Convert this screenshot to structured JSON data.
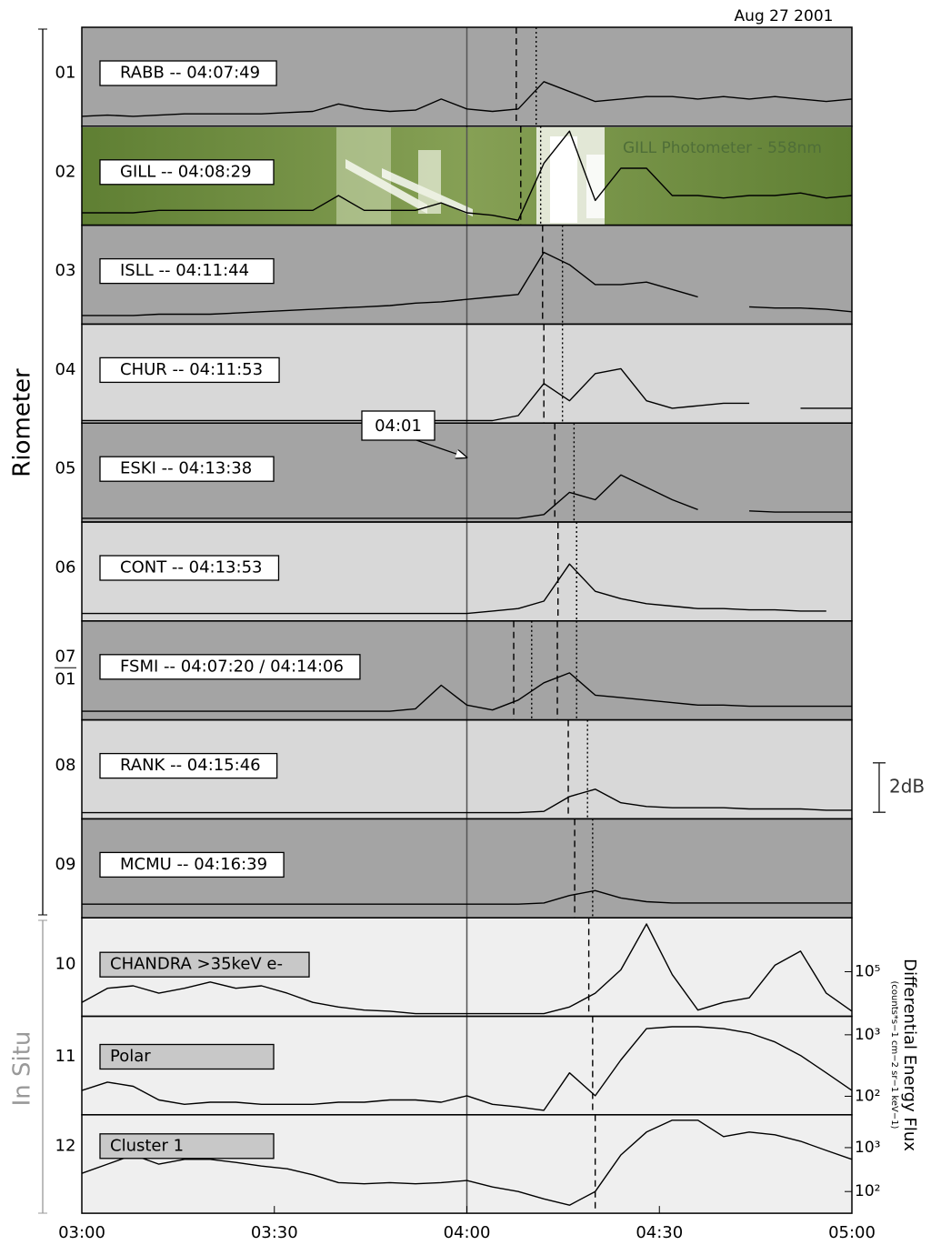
{
  "date": "Aug 27 2001",
  "x_axis": {
    "xlim": [
      0,
      120
    ],
    "x": [
      0,
      4,
      8,
      12,
      16,
      20,
      24,
      28,
      32,
      36,
      40,
      44,
      48,
      52,
      56,
      60,
      64,
      68,
      72,
      76,
      80,
      84,
      88,
      92,
      96,
      100,
      104,
      108,
      112,
      116,
      120
    ],
    "xticks": [
      {
        "value": 0,
        "label": "03:00"
      },
      {
        "value": 30,
        "label": "03:30"
      },
      {
        "value": 60,
        "label": "04:00"
      },
      {
        "value": 90,
        "label": "04:30"
      },
      {
        "value": 120,
        "label": "05:00"
      }
    ],
    "reference_line": 60
  },
  "groups": [
    {
      "label": "Riometer"
    },
    {
      "label": "In Situ"
    }
  ],
  "callout": "04:01",
  "scale_bar": {
    "value": 2,
    "label": "2dB"
  },
  "y_axis_title": "Differential Energy Flux",
  "y_axis_units": "(counts*s−1 cm−2 sr−1 keV−1)",
  "photometer_label": "GILL Photometer - 558nm",
  "panels": [
    {
      "number": "01",
      "label": "RABB -- 04:07:49",
      "color": "#a4a4a4",
      "ylim": [
        0,
        4
      ],
      "values": [
        0.4,
        0.45,
        0.4,
        0.45,
        0.5,
        0.5,
        0.5,
        0.5,
        0.55,
        0.6,
        0.9,
        0.7,
        0.6,
        0.65,
        1.1,
        0.7,
        0.6,
        0.7,
        1.8,
        1.4,
        1.0,
        1.1,
        1.2,
        1.2,
        1.1,
        1.2,
        1.1,
        1.2,
        1.1,
        1.0,
        1.1
      ],
      "onsets": [
        {
          "style": "dashed",
          "x": 67.7
        },
        {
          "style": "dotted",
          "x": 70.8
        }
      ]
    },
    {
      "number": "02",
      "label": "GILL -- 04:08:29",
      "color": "#6e8b3d",
      "ylim": [
        0,
        4
      ],
      "values": [
        0.5,
        0.5,
        0.5,
        0.6,
        0.6,
        0.6,
        0.6,
        0.6,
        0.6,
        0.6,
        1.2,
        0.6,
        0.6,
        0.6,
        0.9,
        0.5,
        0.4,
        0.2,
        2.5,
        3.8,
        1.0,
        2.3,
        2.3,
        1.2,
        1.2,
        1.1,
        1.2,
        1.2,
        1.3,
        1.1,
        1.2
      ],
      "onsets": [
        {
          "style": "dashed",
          "x": 68.4
        },
        {
          "style": "dotted",
          "x": 71.5
        }
      ]
    },
    {
      "number": "03",
      "label": "ISLL -- 04:11:44",
      "color": "#a4a4a4",
      "ylim": [
        0,
        4
      ],
      "values": [
        0.35,
        0.35,
        0.35,
        0.4,
        0.4,
        0.4,
        0.45,
        0.5,
        0.55,
        0.6,
        0.65,
        0.7,
        0.75,
        0.85,
        0.9,
        1.0,
        1.1,
        1.2,
        2.9,
        2.4,
        1.6,
        1.6,
        1.7,
        1.4,
        1.1,
        null,
        0.7,
        0.65,
        0.65,
        0.6,
        0.5
      ],
      "onsets": [
        {
          "style": "dashed",
          "x": 71.8
        },
        {
          "style": "dotted",
          "x": 74.9
        }
      ]
    },
    {
      "number": "04",
      "label": "CHUR -- 04:11:53",
      "color": "#d8d8d8",
      "ylim": [
        0,
        4
      ],
      "values": [
        0.1,
        0.1,
        0.1,
        0.1,
        0.1,
        0.1,
        0.1,
        0.1,
        0.1,
        0.1,
        0.1,
        0.1,
        0.1,
        0.1,
        0.1,
        0.1,
        0.1,
        0.3,
        1.6,
        0.9,
        2.0,
        2.2,
        0.9,
        0.6,
        0.7,
        0.8,
        0.8,
        null,
        0.6,
        0.6,
        0.6
      ],
      "onsets": [
        {
          "style": "dashed",
          "x": 72.0
        },
        {
          "style": "dotted",
          "x": 74.9
        }
      ]
    },
    {
      "number": "05",
      "label": "ESKI -- 04:13:38",
      "color": "#a4a4a4",
      "ylim": [
        0,
        4
      ],
      "values": [
        0.15,
        0.15,
        0.15,
        0.15,
        0.15,
        0.15,
        0.15,
        0.15,
        0.15,
        0.15,
        0.15,
        0.15,
        0.15,
        0.15,
        0.15,
        0.15,
        0.15,
        0.15,
        0.3,
        1.2,
        0.9,
        1.9,
        1.4,
        0.9,
        0.5,
        null,
        0.45,
        0.4,
        0.4,
        0.4,
        0.4
      ],
      "onsets": [
        {
          "style": "dashed",
          "x": 73.7
        },
        {
          "style": "dotted",
          "x": 76.7
        }
      ]
    },
    {
      "number": "06",
      "label": "CONT -- 04:13:53",
      "color": "#d8d8d8",
      "ylim": [
        0,
        4
      ],
      "values": [
        0.3,
        0.3,
        0.3,
        0.3,
        0.3,
        0.3,
        0.3,
        0.3,
        0.3,
        0.3,
        0.3,
        0.3,
        0.3,
        0.3,
        0.3,
        0.3,
        0.4,
        0.5,
        0.8,
        2.3,
        1.2,
        0.9,
        0.7,
        0.6,
        0.5,
        0.5,
        0.45,
        0.45,
        0.4,
        0.4,
        null
      ],
      "onsets": [
        {
          "style": "dashed",
          "x": 74.2
        },
        {
          "style": "dotted",
          "x": 77.1
        }
      ]
    },
    {
      "number": "07",
      "number2": "01",
      "label": "FSMI -- 04:07:20 / 04:14:06",
      "color": "#a4a4a4",
      "ylim": [
        0,
        4
      ],
      "values": [
        0.35,
        0.35,
        0.35,
        0.35,
        0.35,
        0.35,
        0.35,
        0.35,
        0.35,
        0.35,
        0.35,
        0.35,
        0.35,
        0.45,
        1.4,
        0.6,
        0.4,
        0.8,
        1.5,
        1.9,
        1.0,
        0.9,
        0.8,
        0.7,
        0.6,
        0.6,
        0.55,
        0.55,
        0.55,
        0.55,
        0.55
      ],
      "onsets": [
        {
          "style": "dashed",
          "x": 67.3
        },
        {
          "style": "dotted",
          "x": 70.1
        },
        {
          "style": "dashed",
          "x": 74.1
        },
        {
          "style": "dotted",
          "x": 77.1
        }
      ]
    },
    {
      "number": "08",
      "label": "RANK -- 04:15:46",
      "color": "#d8d8d8",
      "ylim": [
        0,
        4
      ],
      "values": [
        0.25,
        0.25,
        0.25,
        0.25,
        0.25,
        0.25,
        0.25,
        0.25,
        0.25,
        0.25,
        0.25,
        0.25,
        0.25,
        0.25,
        0.25,
        0.25,
        0.25,
        0.25,
        0.3,
        0.9,
        1.2,
        0.65,
        0.5,
        0.45,
        0.45,
        0.45,
        0.4,
        0.4,
        0.4,
        0.35,
        0.35
      ],
      "onsets": [
        {
          "style": "dashed",
          "x": 75.8
        },
        {
          "style": "dotted",
          "x": 78.8
        }
      ]
    },
    {
      "number": "09",
      "label": "MCMU -- 04:16:39",
      "color": "#a4a4a4",
      "ylim": [
        0,
        4
      ],
      "values": [
        0.55,
        0.55,
        0.55,
        0.55,
        0.55,
        0.55,
        0.55,
        0.55,
        0.55,
        0.55,
        0.55,
        0.55,
        0.55,
        0.55,
        0.55,
        0.55,
        0.55,
        0.55,
        0.6,
        0.9,
        1.1,
        0.8,
        0.65,
        0.6,
        0.6,
        0.6,
        0.6,
        0.6,
        0.6,
        0.6,
        0.6
      ],
      "onsets": [
        {
          "style": "dashed",
          "x": 76.8
        },
        {
          "style": "dotted",
          "x": 79.6
        }
      ]
    },
    {
      "number": "10",
      "label": "CHANDRA >35keV e-",
      "color": "#efefef",
      "log": true,
      "ylim": [
        20000,
        700000
      ],
      "yticks": [
        {
          "value": 100000,
          "label": "10⁵"
        }
      ],
      "values": [
        33000,
        55000,
        60000,
        46000,
        55000,
        69000,
        55000,
        60000,
        46000,
        33000,
        28000,
        25000,
        24000,
        22000,
        22000,
        22000,
        22000,
        22000,
        22000,
        28000,
        46000,
        107000,
        560000,
        90000,
        25000,
        33000,
        39000,
        126000,
        210000,
        46000,
        24000
      ],
      "onsets": [
        {
          "style": "dashed",
          "x": 79.0
        }
      ]
    },
    {
      "number": "11",
      "label": "Polar",
      "color": "#efefef",
      "log": true,
      "ylim": [
        50,
        2000
      ],
      "yticks": [
        {
          "value": 100,
          "label": "10²"
        },
        {
          "value": 1000,
          "label": "10³"
        }
      ],
      "values": [
        124,
        170,
        145,
        87,
        74,
        80,
        80,
        74,
        74,
        74,
        80,
        80,
        87,
        87,
        80,
        102,
        74,
        67,
        59,
        240,
        102,
        390,
        1260,
        1350,
        1350,
        1260,
        1070,
        765,
        460,
        240,
        124
      ],
      "onsets": [
        {
          "style": "dashed",
          "x": 79.6
        }
      ]
    },
    {
      "number": "12",
      "label": "Cluster 1",
      "color": "#efefef",
      "log": true,
      "ylim": [
        32,
        5600
      ],
      "yticks": [
        {
          "value": 100,
          "label": "10²"
        },
        {
          "value": 1000,
          "label": "10³"
        }
      ],
      "values": [
        260,
        420,
        680,
        420,
        540,
        540,
        460,
        380,
        330,
        240,
        160,
        150,
        160,
        150,
        160,
        178,
        127,
        100,
        68,
        49,
        100,
        680,
        2260,
        4200,
        4200,
        1780,
        2260,
        1960,
        1400,
        865,
        540
      ],
      "onsets": [
        {
          "style": "dashed",
          "x": 80.0
        }
      ]
    }
  ]
}
